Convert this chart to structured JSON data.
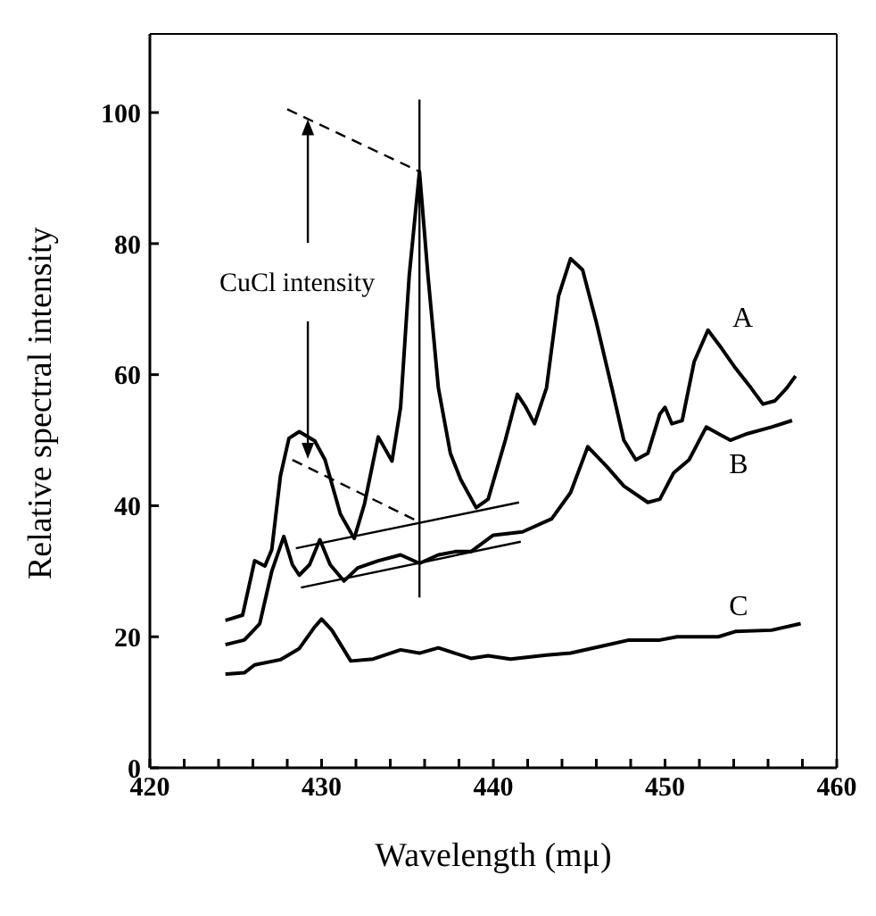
{
  "chart_data": {
    "type": "line",
    "xlabel": "Wavelength (mμ)",
    "ylabel": "Relative spectral intensity",
    "xlim": [
      420,
      460
    ],
    "ylim": [
      0,
      112
    ],
    "xticks": [
      420,
      {
        "value": 422,
        "label": null
      },
      {
        "value": 424,
        "label": null
      },
      {
        "value": 426,
        "label": null
      },
      {
        "value": 428,
        "label": null
      },
      430,
      {
        "value": 432,
        "label": null
      },
      {
        "value": 434,
        "label": null
      },
      {
        "value": 436,
        "label": null
      },
      {
        "value": 438,
        "label": null
      },
      440,
      {
        "value": 442,
        "label": null
      },
      {
        "value": 444,
        "label": null
      },
      {
        "value": 446,
        "label": null
      },
      {
        "value": 448,
        "label": null
      },
      450,
      {
        "value": 452,
        "label": null
      },
      {
        "value": 454,
        "label": null
      },
      {
        "value": 456,
        "label": null
      },
      {
        "value": 458,
        "label": null
      },
      460
    ],
    "yticks": [
      0,
      20,
      40,
      60,
      80,
      100
    ],
    "line_style": "solid",
    "annotations": [
      {
        "text": "CuCl intensity",
        "x": 429.2,
        "y": 99
      }
    ],
    "series": [
      {
        "name": "A",
        "color": "#000000",
        "x": [
          424.4,
          425.4,
          426.1,
          426.7,
          427.1,
          427.6,
          428.1,
          428.7,
          429.6,
          430.2,
          431.1,
          431.9,
          432.5,
          433.3,
          434.1,
          434.6,
          435.1,
          435.7,
          436.2,
          436.8,
          437.5,
          438.1,
          439.0,
          439.7,
          440.7,
          441.4,
          441.9,
          442.4,
          443.1,
          443.8,
          444.5,
          445.2,
          446.0,
          446.9,
          447.6,
          448.3,
          449.0,
          449.7,
          450.0,
          450.4,
          451.0,
          451.7,
          452.5,
          453.3,
          454.1,
          455.0,
          455.7,
          456.4,
          457.1,
          457.6
        ],
        "values": [
          22.5,
          23.3,
          31.6,
          30.8,
          33.3,
          44.5,
          50.3,
          51.3,
          49.9,
          47,
          38.7,
          35,
          40.3,
          50.5,
          46.8,
          55,
          75,
          91,
          75,
          58,
          48,
          44,
          39.7,
          41,
          50,
          57,
          55,
          52.5,
          58,
          72,
          77.7,
          76,
          68,
          58,
          50,
          47,
          48,
          54,
          55,
          52.5,
          53,
          62,
          66.8,
          64,
          61,
          58,
          55.5,
          56,
          58,
          59.8
        ]
      },
      {
        "name": "B",
        "color": "#000000",
        "x": [
          424.4,
          425.5,
          426.4,
          427.1,
          427.8,
          428.3,
          428.7,
          429.3,
          429.9,
          430.5,
          431.3,
          432.1,
          433.3,
          434.6,
          435.7,
          436.8,
          437.8,
          438.7,
          440.0,
          441.7,
          443.4,
          444.5,
          445.5,
          446.6,
          447.6,
          449.0,
          449.7,
          450.5,
          451.4,
          452.4,
          453.1,
          453.8,
          454.8,
          456.2,
          457.4
        ],
        "values": [
          18.8,
          19.5,
          22,
          30,
          35.3,
          31,
          29.4,
          31,
          34.8,
          31,
          28.5,
          30.5,
          31.6,
          32.5,
          31.2,
          32.5,
          33,
          33,
          35.5,
          36,
          38,
          42,
          49,
          46,
          43,
          40.5,
          41,
          45,
          47,
          52,
          51,
          50,
          51,
          52,
          53
        ]
      },
      {
        "name": "C",
        "color": "#000000",
        "x": [
          424.4,
          425.5,
          426.1,
          427.6,
          428.7,
          429.6,
          430.0,
          430.6,
          431.7,
          433.0,
          434.6,
          435.7,
          436.8,
          438.7,
          439.7,
          441.0,
          443.1,
          444.5,
          446.2,
          447.9,
          449.7,
          450.7,
          453.1,
          454.1,
          456.2,
          457.9
        ],
        "values": [
          14.3,
          14.5,
          15.7,
          16.5,
          18.2,
          21.5,
          22.7,
          21,
          16.3,
          16.6,
          18,
          17.5,
          18.3,
          16.7,
          17.1,
          16.6,
          17.2,
          17.5,
          18.5,
          19.5,
          19.5,
          20,
          20,
          20.8,
          21,
          22
        ]
      },
      {
        "color": "#000000",
        "x": [
          435.7,
          435.7
        ],
        "values": [
          102,
          26
        ]
      },
      {
        "color": "#000000",
        "line_style": "dashed",
        "x": [
          428,
          435.7
        ],
        "values": [
          100.5,
          91
        ]
      },
      {
        "color": "#000000",
        "line_style": "dashed",
        "x": [
          428.3,
          435.7
        ],
        "values": [
          47,
          37.5
        ]
      },
      {
        "color": "#000000",
        "x": [
          428.5,
          441.5
        ],
        "values": [
          33.5,
          40.5
        ]
      },
      {
        "color": "#000000",
        "x": [
          428.8,
          441.6
        ],
        "values": [
          27.5,
          34.5
        ]
      }
    ]
  }
}
